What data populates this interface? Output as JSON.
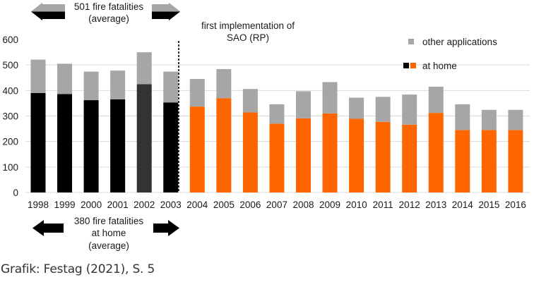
{
  "chart_data": {
    "type": "bar",
    "stacked": true,
    "title": "",
    "xlabel": "",
    "ylabel": "",
    "ylim": [
      0,
      600
    ],
    "yticks": [
      0,
      100,
      200,
      300,
      400,
      500,
      600
    ],
    "grid": true,
    "categories": [
      "1998",
      "1999",
      "2000",
      "2001",
      "2002",
      "2003",
      "2004",
      "2005",
      "2006",
      "2007",
      "2008",
      "2009",
      "2010",
      "2011",
      "2012",
      "2013",
      "2014",
      "2015",
      "2016"
    ],
    "series": [
      {
        "name": "at home",
        "values": [
          390,
          386,
          362,
          365,
          425,
          353,
          337,
          370,
          314,
          270,
          291,
          310,
          289,
          277,
          266,
          312,
          245,
          245,
          245
        ],
        "colors": [
          "#000000",
          "#000000",
          "#000000",
          "#000000",
          "#333333",
          "#000000",
          "#ff6600",
          "#ff6600",
          "#ff6600",
          "#ff6600",
          "#ff6600",
          "#ff6600",
          "#ff6600",
          "#ff6600",
          "#ff6600",
          "#ff6600",
          "#ff6600",
          "#ff6600",
          "#ff6600"
        ]
      },
      {
        "name": "other applications",
        "values": [
          131,
          119,
          112,
          113,
          125,
          121,
          108,
          114,
          92,
          76,
          106,
          123,
          83,
          98,
          118,
          103,
          101,
          79,
          79
        ],
        "color": "#a6a6a6"
      }
    ],
    "legend": {
      "position": "top-right",
      "entries": [
        {
          "label": "other applications",
          "colors": [
            "#a6a6a6"
          ]
        },
        {
          "label": "at home",
          "colors": [
            "#000000",
            "#ff6600"
          ]
        }
      ]
    },
    "annotations": {
      "divider_after": "2003",
      "divider_label_lines": [
        "first implementation of",
        "SAO (RP)"
      ],
      "top_average_lines": [
        "501 fire fatalities",
        "(average)"
      ],
      "bottom_average_lines": [
        "380 fire fatalities",
        "at home",
        "(average)"
      ]
    }
  },
  "caption": "Grafik: Festag (2021), S. 5",
  "colors": {
    "grid": "#d9d9d9",
    "arrow_gray": "#a6a6a6",
    "arrow_black": "#000000"
  }
}
